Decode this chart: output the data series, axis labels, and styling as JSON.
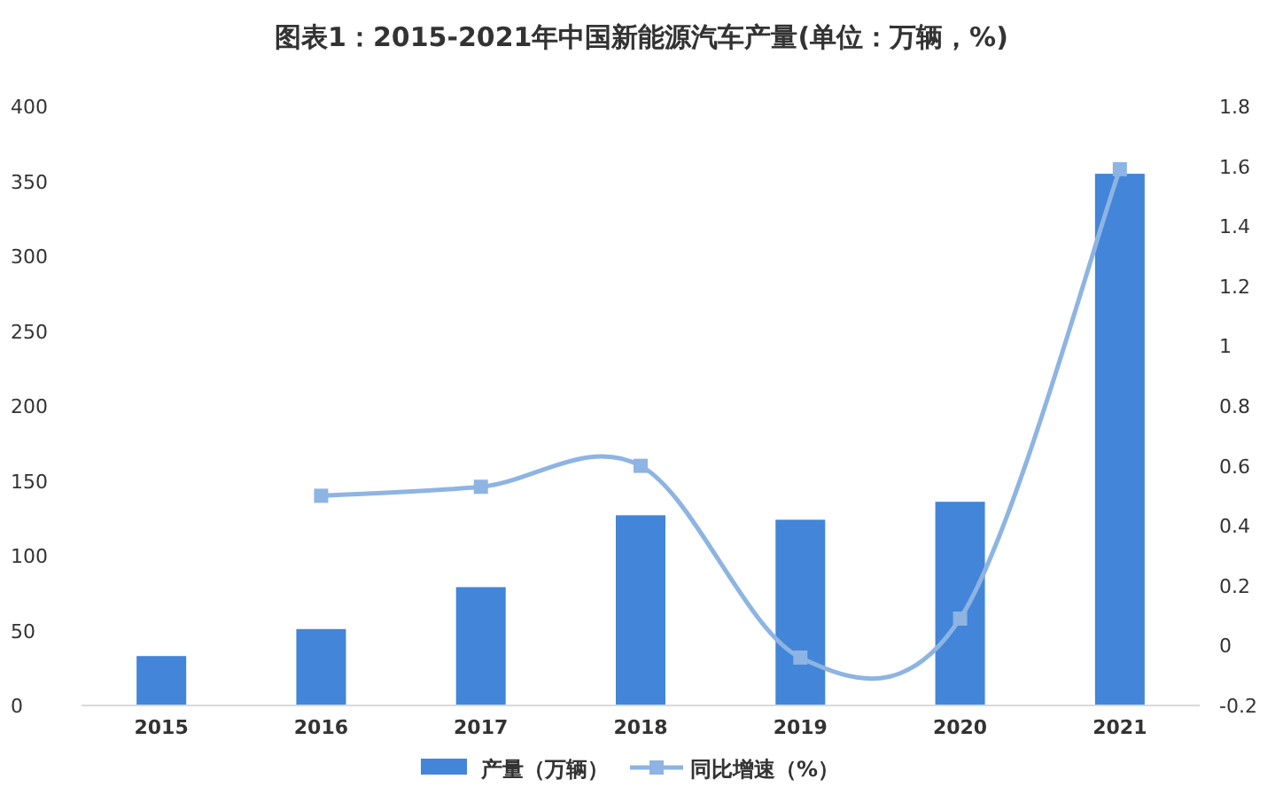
{
  "chart_data": {
    "type": "bar",
    "title": "图表1：2015-2021年中国新能源汽车产量(单位：万辆，%)",
    "categories": [
      "2015",
      "2016",
      "2017",
      "2018",
      "2019",
      "2020",
      "2021"
    ],
    "series": [
      {
        "name": "产量（万辆）",
        "color": "#4285d9",
        "values": [
          33,
          51,
          79,
          127,
          124,
          136,
          355
        ]
      },
      {
        "name": "同比增速（%）",
        "type": "line",
        "axis": "y2",
        "color": "#8db4e2",
        "marker": "square",
        "values": [
          null,
          0.5,
          0.53,
          0.6,
          -0.04,
          0.09,
          1.59
        ]
      }
    ],
    "ylim": [
      0,
      400
    ],
    "yticks": [
      0,
      50,
      100,
      150,
      200,
      250,
      300,
      350,
      400
    ],
    "y2lim": [
      -0.2,
      1.8
    ],
    "y2ticks": [
      -0.2,
      0,
      0.2,
      0.4,
      0.6,
      0.8,
      1,
      1.2,
      1.4,
      1.6,
      1.8
    ],
    "legend": "bottom"
  }
}
